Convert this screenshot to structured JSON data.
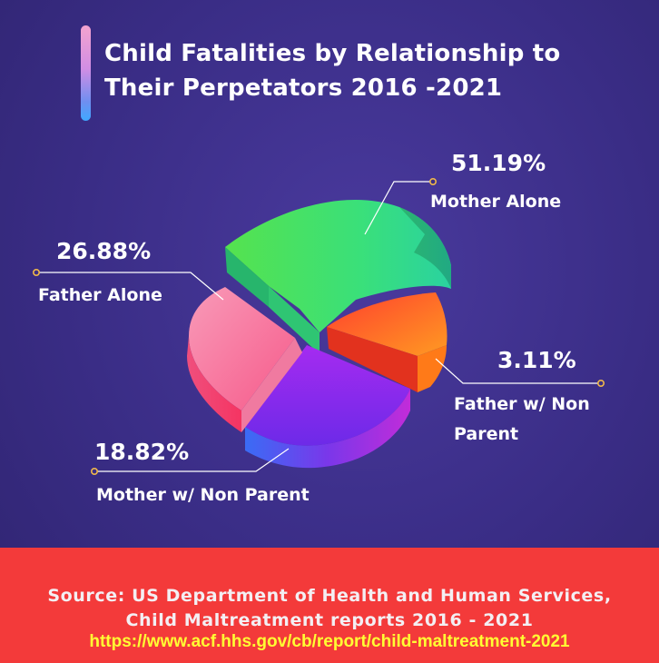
{
  "title": "Child Fatalities by Relationship to\nTheir Perpetators  2016 -2021",
  "chart_data": {
    "type": "pie",
    "title": "Child Fatalities by Relationship to Their Perpetators  2016 -2021",
    "slices": [
      {
        "label": "Mother Alone",
        "value": 51.19,
        "value_label": "51.19%",
        "color": "#33d86a"
      },
      {
        "label": "Father w/ Non\nParent",
        "value": 3.11,
        "value_label": "3.11%",
        "color": "#ff6a12"
      },
      {
        "label": "Mother w/ Non Parent",
        "value": 18.82,
        "value_label": "18.82%",
        "color": "#9a2bef"
      },
      {
        "label": "Father Alone",
        "value": 26.88,
        "value_label": "26.88%",
        "color": "#f75f94"
      }
    ]
  },
  "footer": {
    "source": "Source: US Department of Health and Human Services,\nChild Maltreatment reports 2016 - 2021",
    "url": "https://www.acf.hhs.gov/cb/report/child-maltreatment-2021"
  },
  "colors": {
    "background": "#3a2d86",
    "footer": "#f33a3a",
    "url_text": "#ffff33",
    "leader_dot": "#f0b84a"
  }
}
